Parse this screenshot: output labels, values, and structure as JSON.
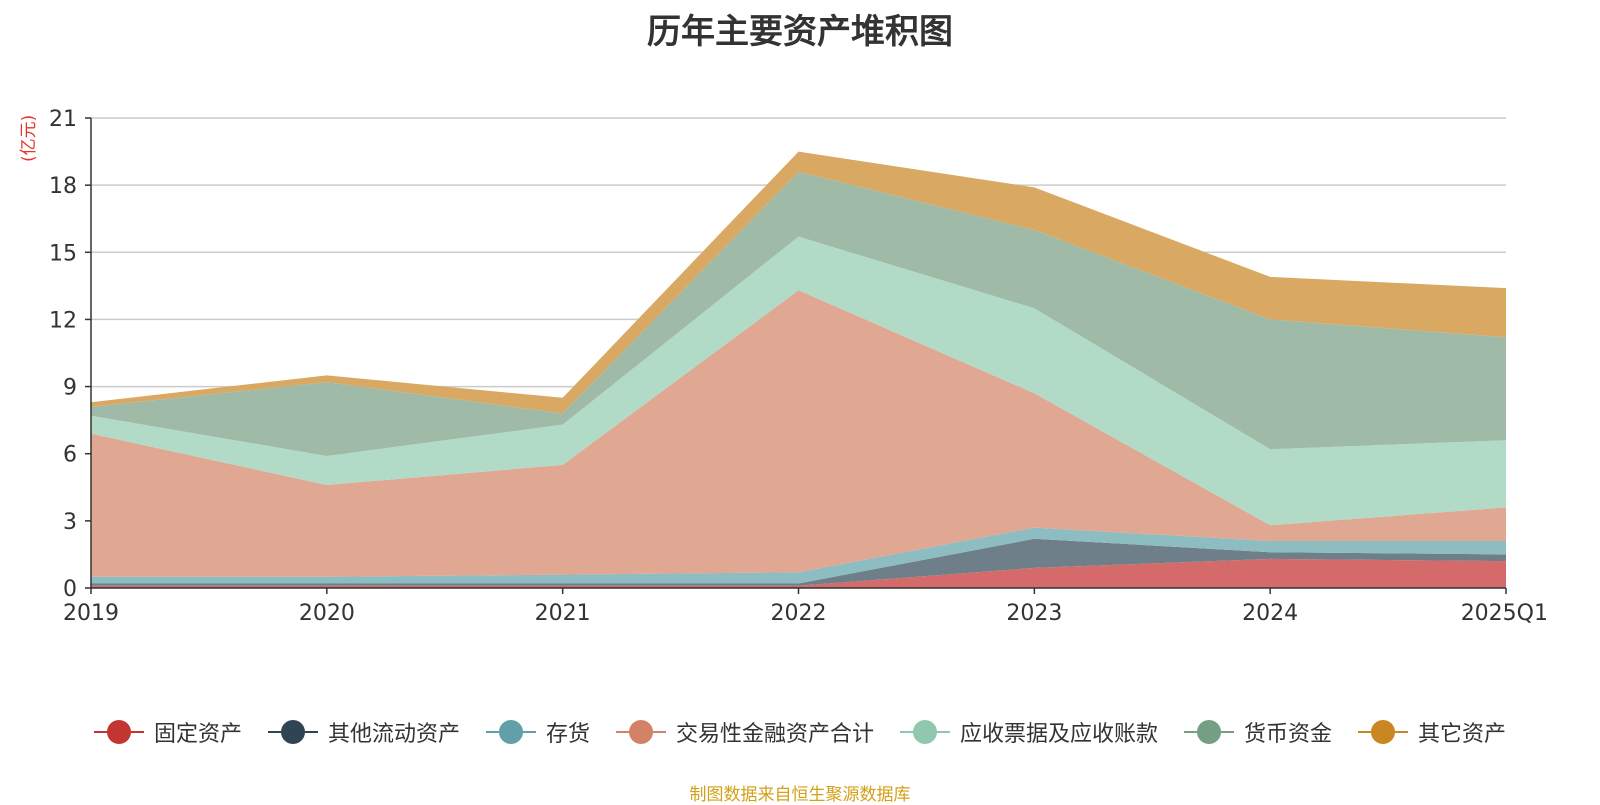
{
  "chart_data": {
    "type": "area",
    "stacked": true,
    "title": "历年主要资产堆积图",
    "unit_label": "(亿元)",
    "ylim": [
      0,
      21
    ],
    "yticks": [
      0,
      3,
      6,
      9,
      12,
      15,
      18,
      21
    ],
    "categories": [
      "2019",
      "2020",
      "2021",
      "2022",
      "2023",
      "2024",
      "2025Q1"
    ],
    "series": [
      {
        "name": "固定资产",
        "color": "#c23531",
        "fill": "#d46b6a",
        "values": [
          0.1,
          0.1,
          0.1,
          0.1,
          0.9,
          1.3,
          1.2
        ]
      },
      {
        "name": "其他流动资产",
        "color": "#2f4554",
        "fill": "#6e7f8a",
        "values": [
          0.1,
          0.1,
          0.1,
          0.1,
          1.3,
          0.3,
          0.3
        ]
      },
      {
        "name": "存货",
        "color": "#61a0a8",
        "fill": "#8dbdc0",
        "values": [
          0.3,
          0.3,
          0.4,
          0.5,
          0.5,
          0.5,
          0.6
        ]
      },
      {
        "name": "交易性金融资产合计",
        "color": "#d48265",
        "fill": "#e0a792",
        "values": [
          6.4,
          4.1,
          4.9,
          12.6,
          6.0,
          0.7,
          1.5
        ]
      },
      {
        "name": "应收票据及应收账款",
        "color": "#91c7ae",
        "fill": "#b1dbc7",
        "values": [
          0.8,
          1.3,
          1.8,
          2.4,
          3.8,
          3.4,
          3.0
        ]
      },
      {
        "name": "货币资金",
        "color": "#749f83",
        "fill": "#9fbba8",
        "values": [
          0.4,
          3.3,
          0.5,
          2.9,
          3.5,
          5.8,
          4.6
        ]
      },
      {
        "name": "其它资产",
        "color": "#ca8622",
        "fill": "#d9a862",
        "values": [
          0.2,
          0.3,
          0.7,
          0.9,
          1.9,
          1.9,
          2.2
        ]
      }
    ]
  },
  "source_note": "制图数据来自恒生聚源数据库"
}
